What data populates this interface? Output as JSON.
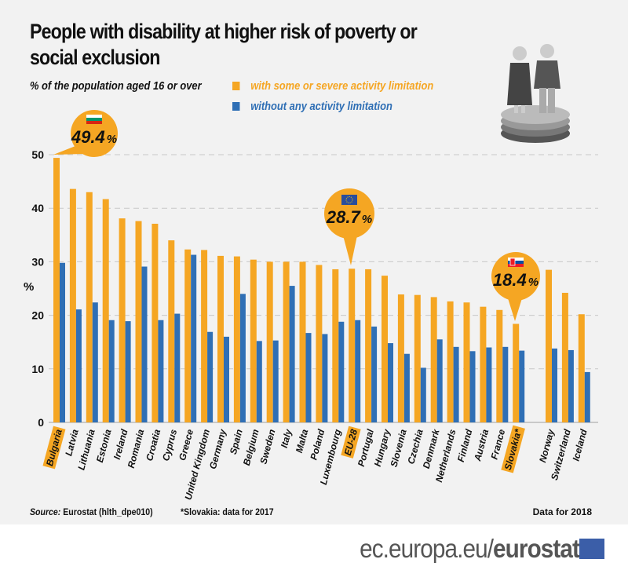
{
  "title": "People with disability at higher risk of poverty or social exclusion",
  "subtitle": "% of the population aged 16 or over",
  "footer": {
    "source_label": "Source:",
    "source_text": "Eurostat (hlth_dpe010)",
    "note": "*Slovakia: data for 2017",
    "data_year": "Data for 2018",
    "brand_plain": "ec.europa.eu/",
    "brand_bold": "eurostat"
  },
  "colors": {
    "limited": "#f5a623",
    "not_limited": "#2f6fb5",
    "highlight": "#f5a623",
    "background": "#f2f2f2"
  },
  "callouts": [
    {
      "country": "Bulgaria",
      "value": "49.4",
      "unit": "%",
      "flag": "bulgaria-flag"
    },
    {
      "country": "EU-28",
      "value": "28.7",
      "unit": "%",
      "flag": "eu-flag"
    },
    {
      "country": "Slovakia*",
      "value": "18.4",
      "unit": "%",
      "flag": "slovakia-flag"
    }
  ],
  "chart_data": {
    "type": "bar",
    "ylabel": "%",
    "ylim": [
      0,
      50
    ],
    "yticks": [
      "0",
      "10",
      "20",
      "30",
      "40",
      "50"
    ],
    "grid": true,
    "legend_position": "top",
    "categories": [
      "Bulgaria",
      "Latvia",
      "Lithuania",
      "Estonia",
      "Ireland",
      "Romania",
      "Croatia",
      "Cyprus",
      "Greece",
      "United Kingdom",
      "Germany",
      "Spain",
      "Belgium",
      "Sweden",
      "Italy",
      "Malta",
      "Poland",
      "Luxembourg",
      "EU-28",
      "Portugal",
      "Hungary",
      "Slovenia",
      "Czechia",
      "Denmark",
      "Netherlands",
      "Finland",
      "Austria",
      "France",
      "Slovakia*",
      "Norway",
      "Switzerland",
      "Iceland"
    ],
    "highlighted": [
      "Bulgaria",
      "EU-28",
      "Slovakia*"
    ],
    "gap_before": [
      "Norway"
    ],
    "series": [
      {
        "name": "with some or severe activity limitation",
        "values": [
          49.4,
          43.6,
          43.0,
          41.7,
          38.1,
          37.6,
          37.1,
          34.0,
          32.3,
          32.2,
          31.1,
          31.0,
          30.4,
          30.0,
          30.0,
          30.0,
          29.4,
          28.6,
          28.7,
          28.6,
          27.4,
          23.9,
          23.8,
          23.4,
          22.6,
          22.4,
          21.6,
          21.0,
          18.4,
          28.5,
          24.2,
          20.2
        ]
      },
      {
        "name": "without any activity limitation",
        "values": [
          29.8,
          21.1,
          22.4,
          19.1,
          18.9,
          29.1,
          19.1,
          20.3,
          31.3,
          16.9,
          16.0,
          24.0,
          15.2,
          15.3,
          25.5,
          16.7,
          16.5,
          18.8,
          19.1,
          17.9,
          14.8,
          12.8,
          10.2,
          15.5,
          14.1,
          13.3,
          14.0,
          14.1,
          13.4,
          13.8,
          13.5,
          9.4
        ]
      }
    ]
  }
}
